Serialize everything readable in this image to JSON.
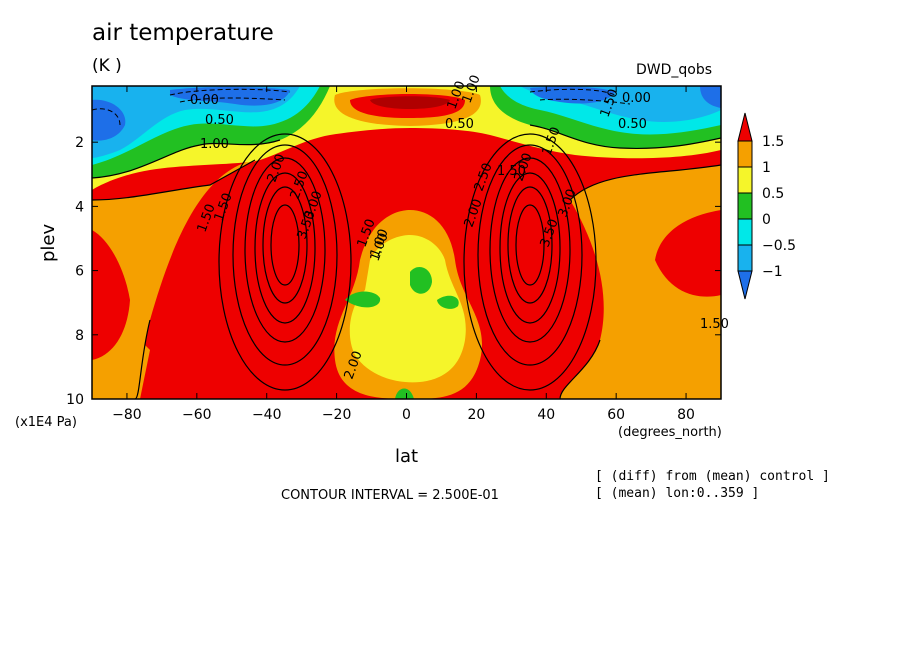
{
  "header": {
    "title": "air temperature",
    "units": "(K )",
    "dataset": "DWD_qobs"
  },
  "footer": {
    "contour_interval": "CONTOUR INTERVAL = 2.500E-01",
    "note1": "[ (diff) from (mean) control ]",
    "note2": "[ (mean) lon:0..359 ]"
  },
  "chart_data": {
    "type": "heatmap",
    "title": "air temperature",
    "xlabel": "lat",
    "x_units": "(degrees_north)",
    "ylabel": "plev",
    "y_units": "(x1E4 Pa)",
    "xlim": [
      -90,
      90
    ],
    "ylim": [
      10,
      0.25
    ],
    "x_ticks": [
      -80,
      -60,
      -40,
      -20,
      0,
      20,
      40,
      60,
      80
    ],
    "y_ticks": [
      2,
      4,
      6,
      8,
      10
    ],
    "colorbar": {
      "levels": [
        -1,
        -0.5,
        0,
        0.5,
        1,
        1.5
      ],
      "labels": [
        "1.5",
        "1",
        "0.5",
        "0",
        "−0.5",
        "−1"
      ],
      "colors": [
        "#1e6fe8",
        "#18b2ee",
        "#00e8e8",
        "#22c022",
        "#f5f52a",
        "#f5a000",
        "#ee0000"
      ]
    },
    "contour_labels": [
      "0.00",
      "0.50",
      "1.00",
      "1.50",
      "1.50",
      "2.00",
      "2.50",
      "3.00",
      "3.50",
      "1.50",
      "1.00",
      "2.00",
      "2.50",
      "3.00",
      "3.50",
      "1.00",
      "0.50",
      "0.00",
      "0.50",
      "1.50",
      "1.50",
      "1.00",
      "1.00",
      "1.50",
      "2.00",
      "1.50",
      "2.00"
    ]
  }
}
